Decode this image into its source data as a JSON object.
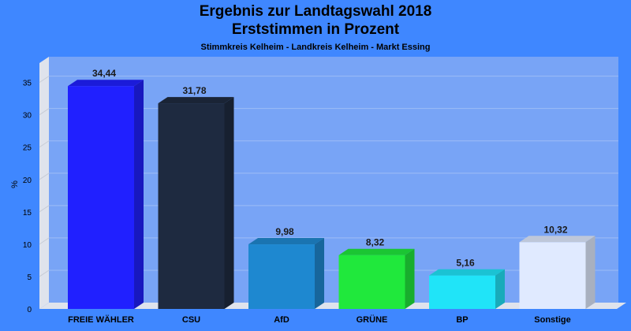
{
  "chart_data": {
    "type": "bar",
    "title": "Ergebnis zur Landtagswahl 2018",
    "subtitle": "Erststimmen in Prozent",
    "subsubtitle": "Stimmkreis Kelheim - Landkreis Kelheim - Markt Essing",
    "xlabel": "",
    "ylabel": "%",
    "ylim": [
      0,
      38
    ],
    "yticks": [
      0,
      5,
      10,
      15,
      20,
      25,
      30,
      35
    ],
    "grid": true,
    "categories": [
      "FREIE WÄHLER",
      "CSU",
      "AfD",
      "GRÜNE",
      "BP",
      "Sonstige"
    ],
    "values": [
      34.44,
      31.78,
      9.98,
      8.32,
      5.16,
      10.32
    ],
    "value_labels": [
      "34,44",
      "31,78",
      "9,98",
      "8,32",
      "5,16",
      "10,32"
    ],
    "colors": [
      "#2020ff",
      "#1e2a40",
      "#1e88d0",
      "#20e83c",
      "#20e4f8",
      "#e0eaff"
    ]
  }
}
